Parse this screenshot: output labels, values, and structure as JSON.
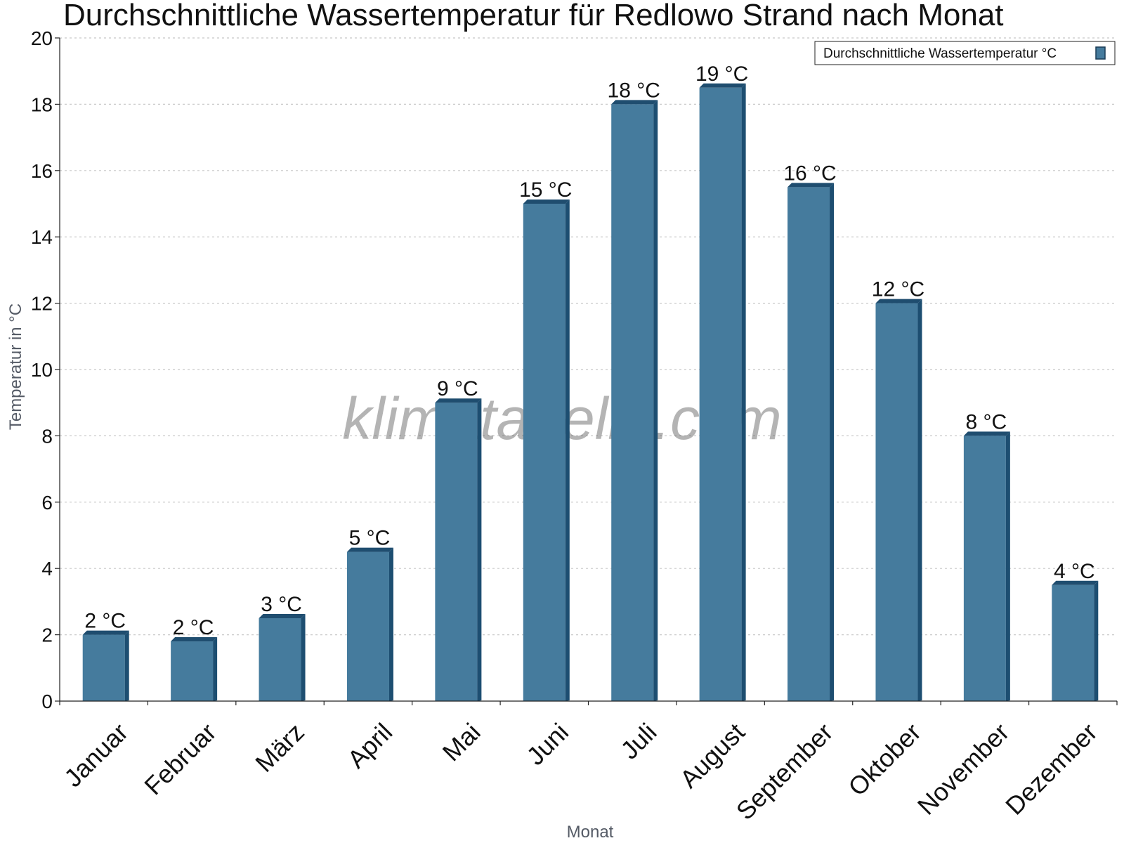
{
  "chart_data": {
    "type": "bar",
    "title": "Durchschnittliche Wassertemperatur für Redlowo Strand nach Monat",
    "xlabel": "Monat",
    "ylabel": "Temperatur in °C",
    "ylim": [
      0,
      20
    ],
    "yticks": [
      0,
      2,
      4,
      6,
      8,
      10,
      12,
      14,
      16,
      18,
      20
    ],
    "grid": true,
    "legend_position": "top-right",
    "categories": [
      "Januar",
      "Februar",
      "März",
      "April",
      "Mai",
      "Juni",
      "Juli",
      "August",
      "September",
      "Oktober",
      "November",
      "Dezember"
    ],
    "series": [
      {
        "name": "Durchschnittliche Wassertemperatur °C",
        "color": "#457b9d",
        "values": [
          2.0,
          1.8,
          2.5,
          4.5,
          9.0,
          15.0,
          18.0,
          18.5,
          15.5,
          12.0,
          8.0,
          3.5
        ],
        "data_labels": [
          "2 °C",
          "2 °C",
          "3 °C",
          "5 °C",
          "9 °C",
          "15 °C",
          "18 °C",
          "19 °C",
          "16 °C",
          "12 °C",
          "8 °C",
          "4 °C"
        ]
      }
    ],
    "watermark": "klimatabelle.com"
  }
}
